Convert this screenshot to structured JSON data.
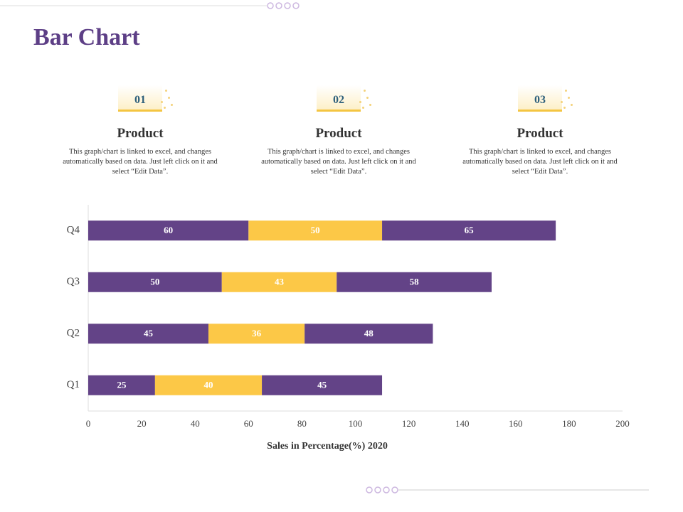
{
  "title": "Bar Chart",
  "cards": [
    {
      "number": "01",
      "heading": "Product",
      "text": "This graph/chart is linked to excel, and changes automatically based on data. Just left click on it and select “Edit Data”."
    },
    {
      "number": "02",
      "heading": "Product",
      "text": "This graph/chart is linked to excel, and changes automatically based on data. Just left click on it and select “Edit Data”."
    },
    {
      "number": "03",
      "heading": "Product",
      "text": "This graph/chart is linked to excel, and changes automatically based on data. Just left click on it and select “Edit Data”."
    }
  ],
  "chart_data": {
    "type": "stacked-barh",
    "xlabel": "Sales in Percentage(%) 2020",
    "categories": [
      "Q1",
      "Q2",
      "Q3",
      "Q4"
    ],
    "series": [
      {
        "color": "#634387",
        "values": [
          25,
          45,
          50,
          60
        ]
      },
      {
        "color": "#fcc847",
        "values": [
          40,
          36,
          43,
          50
        ]
      },
      {
        "color": "#634387",
        "values": [
          45,
          48,
          58,
          65
        ]
      }
    ],
    "xlim": [
      0,
      200
    ],
    "xticks": [
      0,
      20,
      40,
      60,
      80,
      100,
      120,
      140,
      160,
      180,
      200
    ]
  }
}
